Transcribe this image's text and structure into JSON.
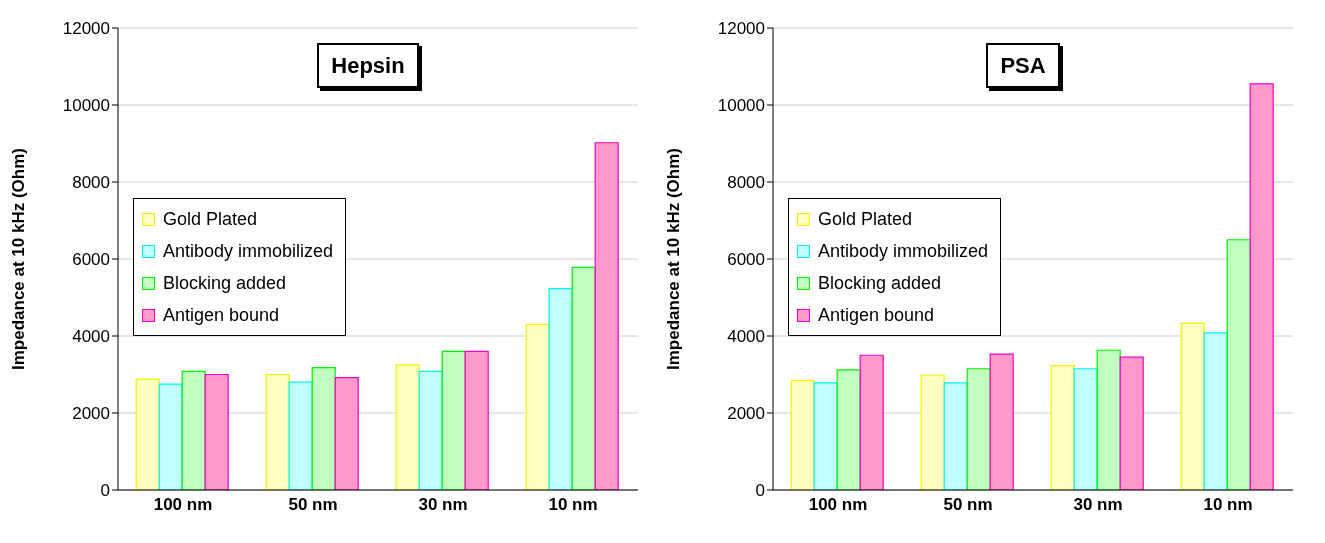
{
  "chart_data": [
    {
      "type": "bar",
      "title": "Hepsin",
      "ylabel": "Impedance at 10 kHz (Ohm)",
      "categories": [
        "100 nm",
        "50 nm",
        "30 nm",
        "10 nm"
      ],
      "series": [
        {
          "name": "Gold Plated",
          "color": "#ffffc0",
          "values": [
            2880,
            3000,
            3250,
            4300
          ]
        },
        {
          "name": "Antibody immobilized",
          "color": "#c0ffff",
          "values": [
            2750,
            2800,
            3080,
            5230
          ]
        },
        {
          "name": "Blocking added",
          "color": "#c0ffc0",
          "values": [
            3080,
            3180,
            3600,
            5780
          ]
        },
        {
          "name": "Antigen bound",
          "color": "#ff99cc",
          "values": [
            3000,
            2920,
            3600,
            9020
          ]
        }
      ],
      "ylim": [
        0,
        12000
      ],
      "yticks": [
        0,
        2000,
        4000,
        6000,
        8000,
        10000,
        12000
      ],
      "grid": "y",
      "legend": "left"
    },
    {
      "type": "bar",
      "title": "PSA",
      "ylabel": "Impedance at 10 kHz (Ohm)",
      "categories": [
        "100 nm",
        "50 nm",
        "30 nm",
        "10 nm"
      ],
      "series": [
        {
          "name": "Gold Plated",
          "color": "#ffffc0",
          "values": [
            2850,
            2980,
            3230,
            4330
          ]
        },
        {
          "name": "Antibody immobilized",
          "color": "#c0ffff",
          "values": [
            2780,
            2780,
            3150,
            4080
          ]
        },
        {
          "name": "Blocking added",
          "color": "#c0ffc0",
          "values": [
            3120,
            3150,
            3630,
            6500
          ]
        },
        {
          "name": "Antigen bound",
          "color": "#ff99cc",
          "values": [
            3500,
            3530,
            3450,
            10550
          ]
        }
      ],
      "ylim": [
        0,
        12000
      ],
      "yticks": [
        0,
        2000,
        4000,
        6000,
        8000,
        10000,
        12000
      ],
      "grid": "y",
      "legend": "left"
    }
  ]
}
